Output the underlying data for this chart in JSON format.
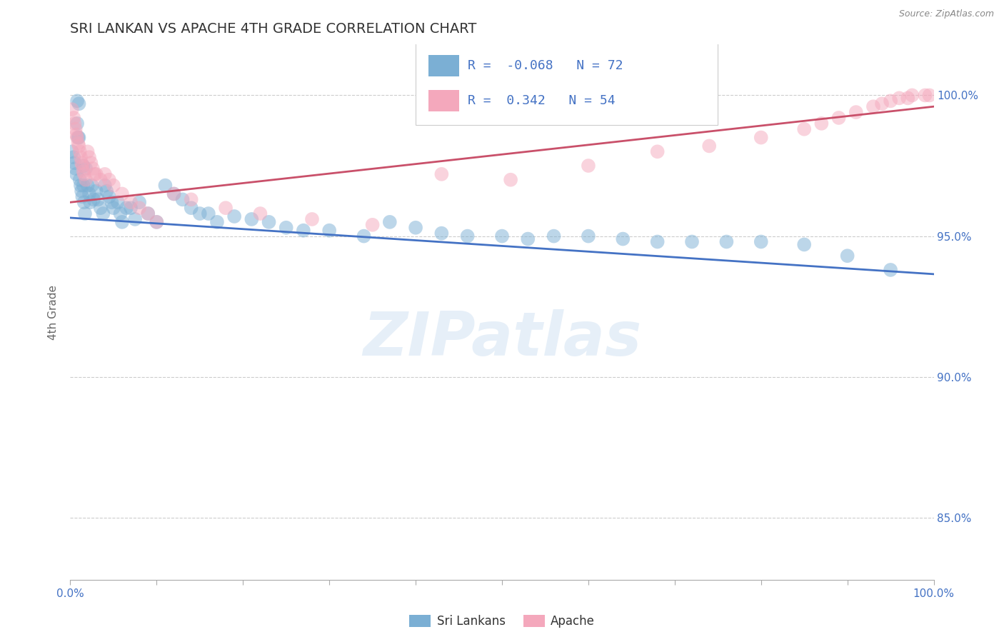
{
  "title": "SRI LANKAN VS APACHE 4TH GRADE CORRELATION CHART",
  "source": "Source: ZipAtlas.com",
  "ylabel": "4th Grade",
  "watermark": "ZIPatlas",
  "xlim": [
    0.0,
    1.0
  ],
  "ylim": [
    0.828,
    1.018
  ],
  "yticks": [
    0.85,
    0.9,
    0.95,
    1.0
  ],
  "ytick_labels": [
    "85.0%",
    "90.0%",
    "95.0%",
    "100.0%"
  ],
  "blue_R": -0.068,
  "blue_N": 72,
  "pink_R": 0.342,
  "pink_N": 54,
  "blue_color": "#7BAFD4",
  "pink_color": "#F4A8BC",
  "blue_line_color": "#4472C4",
  "pink_line_color": "#C9506A",
  "blue_line_y_start": 0.9565,
  "blue_line_y_end": 0.9365,
  "pink_line_y_start": 0.962,
  "pink_line_y_end": 0.996,
  "blue_scatter_x": [
    0.002,
    0.004,
    0.005,
    0.006,
    0.007,
    0.008,
    0.008,
    0.009,
    0.01,
    0.01,
    0.011,
    0.012,
    0.013,
    0.014,
    0.015,
    0.015,
    0.016,
    0.017,
    0.018,
    0.02,
    0.022,
    0.023,
    0.025,
    0.027,
    0.03,
    0.032,
    0.035,
    0.038,
    0.04,
    0.042,
    0.045,
    0.048,
    0.05,
    0.055,
    0.058,
    0.06,
    0.065,
    0.07,
    0.075,
    0.08,
    0.09,
    0.1,
    0.11,
    0.12,
    0.13,
    0.14,
    0.15,
    0.16,
    0.17,
    0.19,
    0.21,
    0.23,
    0.25,
    0.27,
    0.3,
    0.34,
    0.37,
    0.4,
    0.43,
    0.46,
    0.5,
    0.53,
    0.56,
    0.6,
    0.64,
    0.68,
    0.72,
    0.76,
    0.8,
    0.85,
    0.9,
    0.95
  ],
  "blue_scatter_y": [
    0.98,
    0.978,
    0.976,
    0.974,
    0.972,
    0.998,
    0.99,
    0.985,
    0.997,
    0.985,
    0.97,
    0.968,
    0.966,
    0.964,
    0.975,
    0.968,
    0.962,
    0.958,
    0.974,
    0.968,
    0.965,
    0.962,
    0.968,
    0.963,
    0.966,
    0.963,
    0.96,
    0.958,
    0.968,
    0.966,
    0.964,
    0.962,
    0.96,
    0.962,
    0.958,
    0.955,
    0.96,
    0.96,
    0.956,
    0.962,
    0.958,
    0.955,
    0.968,
    0.965,
    0.963,
    0.96,
    0.958,
    0.958,
    0.955,
    0.957,
    0.956,
    0.955,
    0.953,
    0.952,
    0.952,
    0.95,
    0.955,
    0.953,
    0.951,
    0.95,
    0.95,
    0.949,
    0.95,
    0.95,
    0.949,
    0.948,
    0.948,
    0.948,
    0.948,
    0.947,
    0.943,
    0.938
  ],
  "pink_scatter_x": [
    0.002,
    0.004,
    0.005,
    0.006,
    0.007,
    0.008,
    0.009,
    0.01,
    0.011,
    0.012,
    0.013,
    0.014,
    0.015,
    0.016,
    0.018,
    0.02,
    0.022,
    0.024,
    0.026,
    0.028,
    0.03,
    0.035,
    0.04,
    0.045,
    0.05,
    0.06,
    0.07,
    0.08,
    0.09,
    0.1,
    0.12,
    0.14,
    0.18,
    0.22,
    0.28,
    0.35,
    0.43,
    0.51,
    0.6,
    0.68,
    0.74,
    0.8,
    0.85,
    0.87,
    0.89,
    0.91,
    0.93,
    0.94,
    0.95,
    0.96,
    0.97,
    0.975,
    0.99,
    0.995
  ],
  "pink_scatter_y": [
    0.995,
    0.992,
    0.99,
    0.988,
    0.986,
    0.985,
    0.983,
    0.982,
    0.98,
    0.978,
    0.976,
    0.975,
    0.973,
    0.972,
    0.97,
    0.98,
    0.978,
    0.976,
    0.974,
    0.972,
    0.972,
    0.97,
    0.972,
    0.97,
    0.968,
    0.965,
    0.962,
    0.96,
    0.958,
    0.955,
    0.965,
    0.963,
    0.96,
    0.958,
    0.956,
    0.954,
    0.972,
    0.97,
    0.975,
    0.98,
    0.982,
    0.985,
    0.988,
    0.99,
    0.992,
    0.994,
    0.996,
    0.997,
    0.998,
    0.999,
    0.999,
    1.0,
    1.0,
    1.0
  ],
  "grid_color": "#CCCCCC",
  "title_color": "#333333",
  "axis_label_color": "#666666",
  "right_label_color": "#4472C4",
  "legend_label_color": "#4472C4",
  "xtick_positions": [
    0.0,
    0.1,
    0.2,
    0.3,
    0.4,
    0.5,
    0.6,
    0.7,
    0.8,
    0.9,
    1.0
  ]
}
